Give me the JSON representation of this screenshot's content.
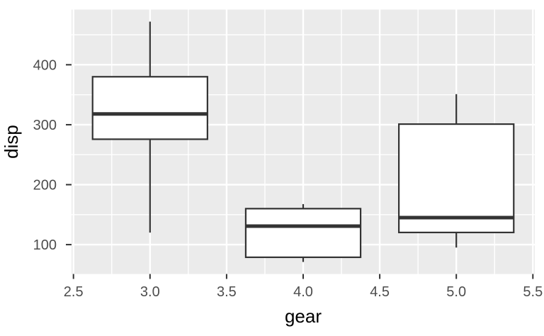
{
  "chart_data": {
    "type": "boxplot",
    "title": "",
    "xlabel": "gear",
    "ylabel": "disp",
    "xlim": [
      2.4875,
      5.5125
    ],
    "ylim": [
      51.05,
      492.05
    ],
    "x_ticks": [
      2.5,
      3.0,
      3.5,
      4.0,
      4.5,
      5.0,
      5.5
    ],
    "x_tick_labels": [
      "2.5",
      "3.0",
      "3.5",
      "4.0",
      "4.5",
      "5.0",
      "5.5"
    ],
    "y_ticks": [
      100,
      200,
      300,
      400
    ],
    "y_tick_labels": [
      "100",
      "200",
      "300",
      "400"
    ],
    "x_minor_gridlines": [
      2.75,
      3.25,
      3.75,
      4.25,
      4.75,
      5.25
    ],
    "y_minor_gridlines": [
      150,
      250,
      350,
      450
    ],
    "grid": true,
    "legend": "none",
    "box_width": 0.75,
    "groups": [
      {
        "x": 3,
        "whisker_min": 120.1,
        "q1": 275.8,
        "median": 318.0,
        "q3": 380.0,
        "whisker_max": 472.0
      },
      {
        "x": 4,
        "whisker_min": 71.1,
        "q1": 78.9,
        "median": 130.9,
        "q3": 160.0,
        "whisker_max": 167.6
      },
      {
        "x": 5,
        "whisker_min": 95.1,
        "q1": 120.3,
        "median": 145.0,
        "q3": 301.0,
        "whisker_max": 351.0
      }
    ],
    "colors": {
      "background": "#FFFFFF",
      "panel_bg": "#EBEBEB",
      "grid_major": "#FFFFFF",
      "grid_minor": "#FFFFFF",
      "box_stroke": "#333333",
      "box_fill": "#FFFFFF",
      "median": "#333333",
      "tick_mark": "#333333",
      "axis_text": "#4D4D4D",
      "axis_title": "#000000"
    }
  }
}
